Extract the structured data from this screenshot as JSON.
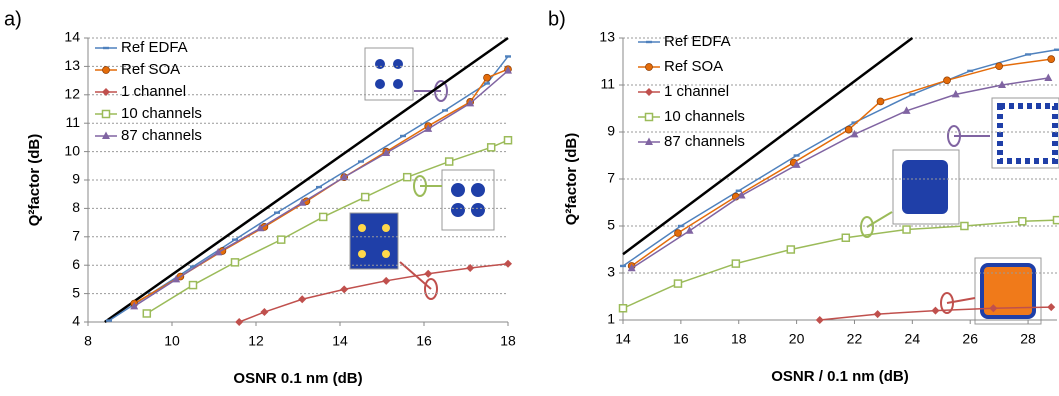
{
  "chart_data": [
    {
      "type": "line",
      "panel_label": "a)",
      "x_label": "OSNR 0.1 nm (dB)",
      "y_label": "Q²factor (dB)",
      "xlim": [
        8,
        18
      ],
      "ylim": [
        4,
        14
      ],
      "xticks": [
        8,
        10,
        12,
        14,
        16,
        18
      ],
      "yticks": [
        4,
        5,
        6,
        7,
        8,
        9,
        10,
        11,
        12,
        13,
        14
      ],
      "grid": true,
      "series": [
        {
          "color": "#000000",
          "marker": "none",
          "line_width": 2.5,
          "x": [
            8.4,
            18
          ],
          "values": [
            4,
            14
          ]
        },
        {
          "name": "Ref EDFA",
          "color": "#4f81bd",
          "marker": "dash",
          "line_width": 1.5,
          "x": [
            8.5,
            9.5,
            10.5,
            11.5,
            12.5,
            13.5,
            14.5,
            15.5,
            16.5,
            17.5,
            18
          ],
          "values": [
            4.05,
            5.0,
            5.95,
            6.9,
            7.85,
            8.75,
            9.65,
            10.55,
            11.45,
            12.4,
            13.35
          ]
        },
        {
          "name": "Ref SOA",
          "color": "#e46c0a",
          "marker": "circle",
          "line_width": 1.5,
          "x": [
            9.1,
            10.2,
            11.2,
            12.2,
            13.2,
            14.1,
            15.1,
            16.1,
            17.1,
            17.5,
            18
          ],
          "values": [
            4.65,
            5.6,
            6.5,
            7.35,
            8.25,
            9.1,
            10.0,
            10.9,
            11.75,
            12.6,
            12.9
          ]
        },
        {
          "name": "1 channel",
          "color": "#c0504d",
          "marker": "diamond",
          "line_width": 1.5,
          "x": [
            11.6,
            12.2,
            13.1,
            14.1,
            15.1,
            16.1,
            17.1,
            18
          ],
          "values": [
            4,
            4.35,
            4.8,
            5.15,
            5.45,
            5.7,
            5.9,
            6.05
          ]
        },
        {
          "name": "10 channels",
          "color": "#9bbb59",
          "marker": "square",
          "line_width": 1.5,
          "x": [
            9.4,
            10.5,
            11.5,
            12.6,
            13.6,
            14.6,
            15.6,
            16.6,
            17.6,
            18
          ],
          "values": [
            4.3,
            5.3,
            6.1,
            6.9,
            7.7,
            8.4,
            9.1,
            9.65,
            10.15,
            10.4
          ]
        },
        {
          "name": "87 channels",
          "color": "#8064a2",
          "marker": "triangle",
          "line_width": 1.5,
          "x": [
            9.1,
            10.1,
            11.1,
            12.1,
            13.1,
            14.1,
            15.1,
            16.1,
            17.1,
            18
          ],
          "values": [
            4.55,
            5.5,
            6.45,
            7.3,
            8.2,
            9.1,
            9.95,
            10.8,
            11.7,
            12.85
          ]
        }
      ]
    },
    {
      "type": "line",
      "panel_label": "b)",
      "x_label": "OSNR / 0.1 nm (dB)",
      "y_label": "Q²factor (dB)",
      "xlim": [
        14,
        29
      ],
      "ylim": [
        1,
        13
      ],
      "xticks": [
        14,
        16,
        18,
        20,
        22,
        24,
        26,
        28
      ],
      "yticks": [
        1,
        3,
        5,
        7,
        9,
        11,
        13
      ],
      "grid": true,
      "series": [
        {
          "color": "#000000",
          "marker": "none",
          "line_width": 2.5,
          "x": [
            14,
            24
          ],
          "values": [
            3.8,
            13
          ]
        },
        {
          "name": "Ref EDFA",
          "color": "#4f81bd",
          "marker": "dash",
          "line_width": 1.5,
          "x": [
            14,
            16,
            18,
            20,
            22,
            24,
            26,
            28,
            29
          ],
          "values": [
            3.3,
            5.0,
            6.5,
            8.0,
            9.4,
            10.6,
            11.6,
            12.3,
            12.5
          ]
        },
        {
          "name": "Ref SOA",
          "color": "#e46c0a",
          "marker": "circle",
          "line_width": 1.5,
          "x": [
            14.3,
            15.9,
            17.9,
            19.9,
            21.8,
            22.9,
            25.2,
            27,
            28.8
          ],
          "values": [
            3.3,
            4.7,
            6.25,
            7.7,
            9.1,
            10.3,
            11.2,
            11.8,
            12.1
          ]
        },
        {
          "name": "1 channel",
          "color": "#c0504d",
          "marker": "diamond",
          "line_width": 1.5,
          "x": [
            20.8,
            22.8,
            24.8,
            26.8,
            28.8
          ],
          "values": [
            1.0,
            1.25,
            1.4,
            1.5,
            1.55
          ]
        },
        {
          "name": "10 channels",
          "color": "#9bbb59",
          "marker": "square",
          "line_width": 1.5,
          "x": [
            14,
            15.9,
            17.9,
            19.8,
            21.7,
            23.8,
            25.8,
            27.8,
            29
          ],
          "values": [
            1.5,
            2.55,
            3.4,
            4.0,
            4.5,
            4.85,
            5.0,
            5.2,
            5.25
          ]
        },
        {
          "name": "87 channels",
          "color": "#8064a2",
          "marker": "triangle",
          "line_width": 1.5,
          "x": [
            14.3,
            16.3,
            18.1,
            20,
            22,
            23.8,
            25.5,
            27.1,
            28.7
          ],
          "values": [
            3.2,
            4.8,
            6.3,
            7.6,
            8.9,
            9.9,
            10.6,
            11.0,
            11.3
          ]
        }
      ]
    }
  ]
}
